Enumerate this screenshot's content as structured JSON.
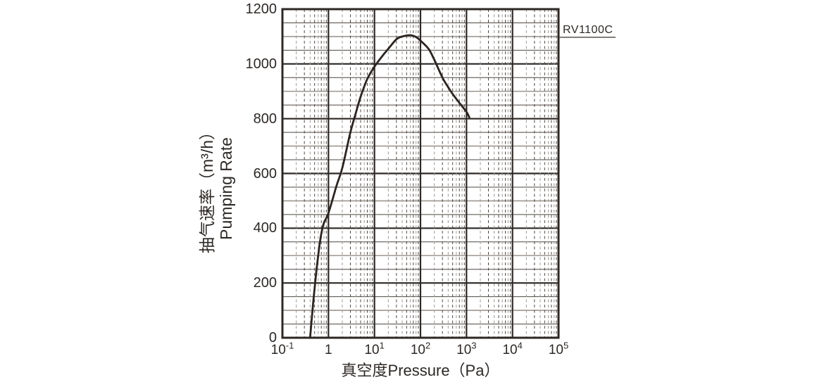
{
  "chart_data": {
    "type": "line",
    "series_label": "RV1100C",
    "xlabel": "真空度Pressure（Pa）",
    "ylabel_line1": "抽气速率（m³/h）",
    "ylabel_line2": "Pumping Rate",
    "x_scale": "log",
    "x_range_pa": [
      0.1,
      100000
    ],
    "y_range_m3h": [
      0,
      1200
    ],
    "y_ticks": [
      "0",
      "200",
      "400",
      "600",
      "800",
      "1000",
      "1200"
    ],
    "y_tick_values": [
      0,
      200,
      400,
      600,
      800,
      1000,
      1200
    ],
    "y_minor_grid_step": 50,
    "x_ticks": [
      {
        "text": "10",
        "exp": "-1",
        "value": 0.1
      },
      {
        "text": "1",
        "exp": "",
        "value": 1
      },
      {
        "text": "10",
        "exp": "1",
        "value": 10
      },
      {
        "text": "10",
        "exp": "2",
        "value": 100
      },
      {
        "text": "10",
        "exp": "3",
        "value": 1000
      },
      {
        "text": "10",
        "exp": "4",
        "value": 10000
      },
      {
        "text": "10",
        "exp": "5",
        "value": 100000
      }
    ],
    "legend_position": "top-right",
    "grid": {
      "horizontal_major_every": 200,
      "horizontal_minor_every": 50,
      "vertical": "log decades solid, mantissa 2-9 dashed"
    },
    "series": [
      {
        "name": "RV1100C",
        "points_pa_m3h": [
          [
            0.4,
            0
          ],
          [
            0.45,
            100
          ],
          [
            0.5,
            180
          ],
          [
            0.56,
            260
          ],
          [
            0.63,
            330
          ],
          [
            0.7,
            380
          ],
          [
            0.8,
            420
          ],
          [
            1,
            455
          ],
          [
            1.5,
            555
          ],
          [
            2,
            620
          ],
          [
            3,
            750
          ],
          [
            4,
            825
          ],
          [
            5,
            880
          ],
          [
            7,
            945
          ],
          [
            10,
            990
          ],
          [
            15,
            1030
          ],
          [
            20,
            1055
          ],
          [
            30,
            1090
          ],
          [
            40,
            1100
          ],
          [
            60,
            1105
          ],
          [
            80,
            1098
          ],
          [
            100,
            1085
          ],
          [
            150,
            1055
          ],
          [
            200,
            1015
          ],
          [
            300,
            950
          ],
          [
            400,
            915
          ],
          [
            500,
            890
          ],
          [
            700,
            858
          ],
          [
            1000,
            825
          ],
          [
            1150,
            805
          ]
        ]
      }
    ],
    "colors": {
      "axis": "#2d2825",
      "curve": "#2b2421",
      "grid_minor_dark": "#4e4742",
      "grid_minor_light": "#9d9792",
      "label_underline": "#5a534e",
      "background": "#ffffff"
    }
  }
}
